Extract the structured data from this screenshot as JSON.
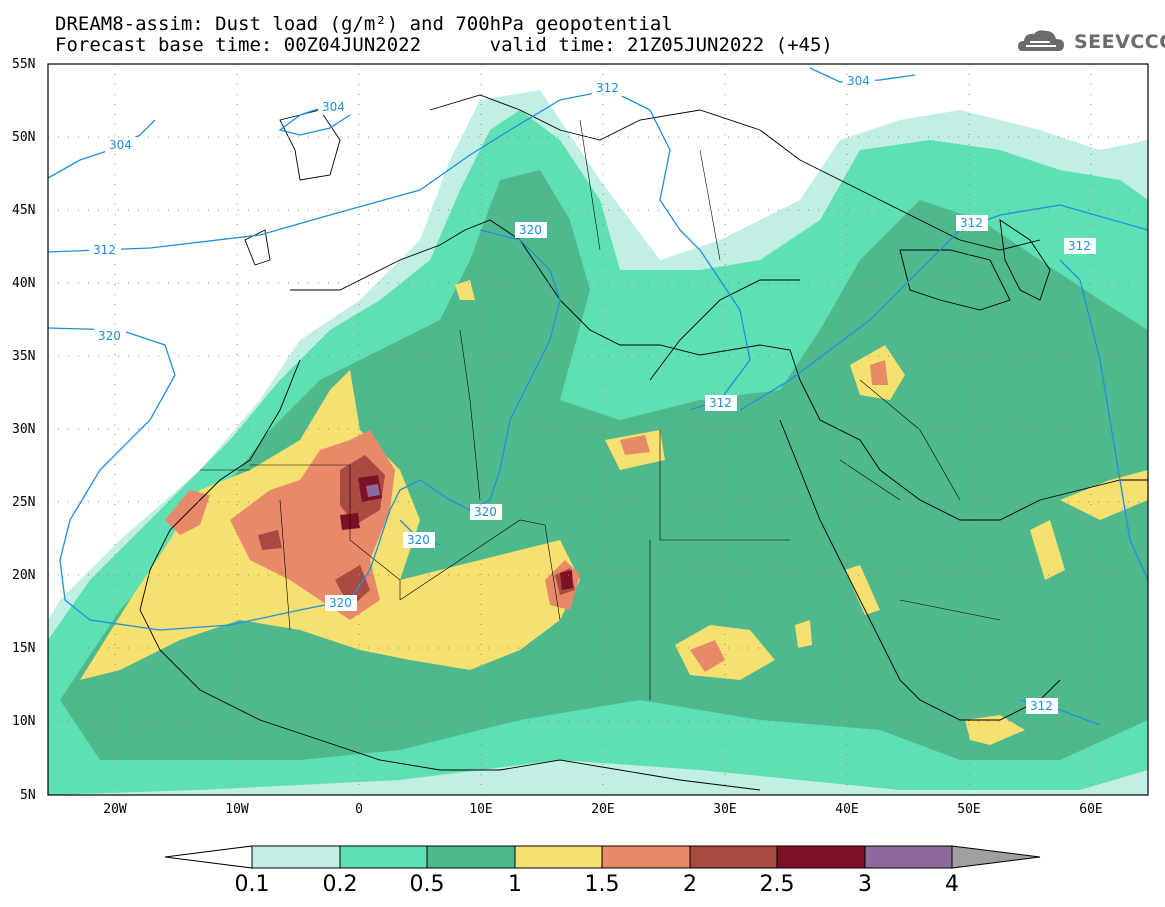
{
  "title": {
    "line1": "DREAM8-assim: Dust load (g/m²) and 700hPa geopotential",
    "line2": "Forecast base time: 00Z04JUN2022      valid time: 21Z05JUN2022 (+45)"
  },
  "logo": {
    "text": "SEEVCCC",
    "icon": "cloud-icon"
  },
  "map": {
    "lat_labels": [
      "55N",
      "50N",
      "45N",
      "40N",
      "35N",
      "30N",
      "25N",
      "20N",
      "15N",
      "10N",
      "5N"
    ],
    "lon_labels": [
      "20W",
      "10W",
      "0",
      "10E",
      "20E",
      "30E",
      "40E",
      "50E",
      "60E"
    ],
    "contour_labels": [
      "304",
      "304",
      "304",
      "312",
      "312",
      "312",
      "312",
      "312",
      "320",
      "320",
      "320",
      "320",
      "320"
    ]
  },
  "colorbar": {
    "labels": [
      "0.1",
      "0.2",
      "0.5",
      "1",
      "1.5",
      "2",
      "2.5",
      "3",
      "4"
    ],
    "colors": [
      "#ffffff",
      "#c1efe6",
      "#5fe0b2",
      "#4fb98d",
      "#f5e070",
      "#e8896a",
      "#a84a3f",
      "#7d1026",
      "#8e6a9c",
      "#a0a0a0"
    ]
  }
}
